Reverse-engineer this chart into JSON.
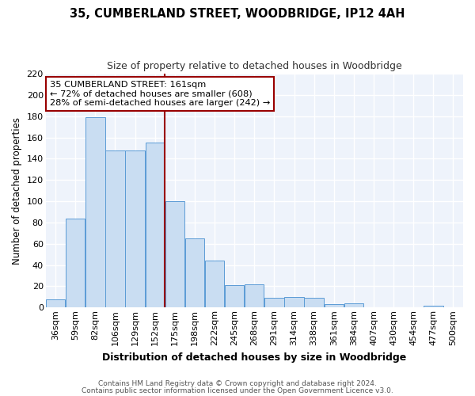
{
  "title": "35, CUMBERLAND STREET, WOODBRIDGE, IP12 4AH",
  "subtitle": "Size of property relative to detached houses in Woodbridge",
  "xlabel": "Distribution of detached houses by size in Woodbridge",
  "ylabel": "Number of detached properties",
  "bar_labels": [
    "36sqm",
    "59sqm",
    "82sqm",
    "106sqm",
    "129sqm",
    "152sqm",
    "175sqm",
    "198sqm",
    "222sqm",
    "245sqm",
    "268sqm",
    "291sqm",
    "314sqm",
    "338sqm",
    "361sqm",
    "384sqm",
    "407sqm",
    "430sqm",
    "454sqm",
    "477sqm",
    "500sqm"
  ],
  "bar_values": [
    8,
    84,
    179,
    148,
    148,
    155,
    100,
    65,
    44,
    21,
    22,
    9,
    10,
    9,
    3,
    4,
    0,
    0,
    0,
    2,
    0
  ],
  "bar_color": "#c9ddf2",
  "bar_edge_color": "#5b9bd5",
  "bar_width": 0.97,
  "vline_x": 5.5,
  "vline_color": "#990000",
  "annotation_title": "35 CUMBERLAND STREET: 161sqm",
  "annotation_line1": "← 72% of detached houses are smaller (608)",
  "annotation_line2": "28% of semi-detached houses are larger (242) →",
  "annotation_box_facecolor": "#ffffff",
  "annotation_box_edgecolor": "#990000",
  "ylim": [
    0,
    220
  ],
  "yticks": [
    0,
    20,
    40,
    60,
    80,
    100,
    120,
    140,
    160,
    180,
    200,
    220
  ],
  "footer1": "Contains HM Land Registry data © Crown copyright and database right 2024.",
  "footer2": "Contains public sector information licensed under the Open Government Licence v3.0.",
  "fig_bg_color": "#ffffff",
  "plot_bg_color": "#eef3fb",
  "grid_color": "#ffffff"
}
